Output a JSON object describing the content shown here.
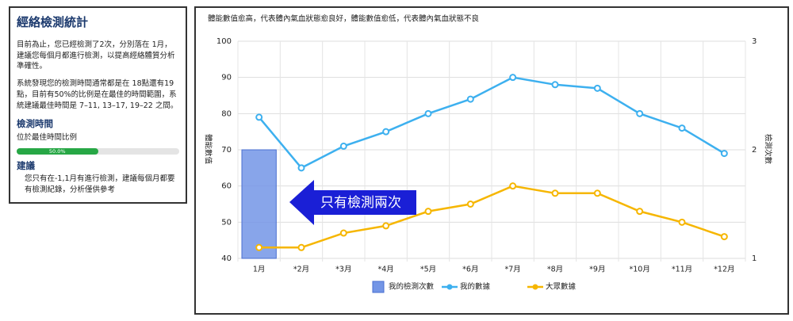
{
  "panel": {
    "title": "經絡檢測統計",
    "paragraphs": [
      "目前為止，您已經檢測了2次，分別落在 1月，建議您每個月都進行檢測，以提高經絡體質分析準確性。",
      "系統發現您的檢測時間通常都是在 18點還有19點，目前有50%的比例是在最佳的時間範圍，系統建議最佳時間是 7–11, 13–17, 19–22 之間。"
    ],
    "time_heading": "檢測時間",
    "time_sub": "位於最佳時間比例",
    "progress": 50,
    "progress_label": "50.0%",
    "advice_heading": "建議",
    "advice": "您只有在-1,1月有進行檢測，建議每個月都要有檢測紀錄，分析僅供參考"
  },
  "chart_data": {
    "type": "combo",
    "subtitle": "體能數值愈高，代表體內氣血狀態愈良好，體能數值愈低，代表體內氣血狀態不良",
    "y_label": "體能數值",
    "y2_label": "檢測次數",
    "annotation": "只有檢測兩次",
    "categories": [
      "1月",
      "*2月",
      "*3月",
      "*4月",
      "*5月",
      "*6月",
      "*7月",
      "*8月",
      "*9月",
      "*10月",
      "*11月",
      "*12月"
    ],
    "series": [
      {
        "name": "我的檢測次數",
        "kind": "bar",
        "axis": "y2",
        "color": "#7395e6",
        "values": [
          2,
          null,
          null,
          null,
          null,
          null,
          null,
          null,
          null,
          null,
          null,
          null
        ]
      },
      {
        "name": "我的數據",
        "kind": "line",
        "color": "#3db0ef",
        "values": [
          79,
          65,
          71,
          75,
          80,
          84,
          90,
          88,
          87,
          80,
          76,
          69
        ]
      },
      {
        "name": "大眾數據",
        "kind": "line",
        "color": "#f6b600",
        "values": [
          43,
          43,
          47,
          49,
          53,
          55,
          60,
          58,
          58,
          53,
          50,
          46
        ]
      }
    ],
    "ylim": [
      40,
      100
    ],
    "yticks": [
      40,
      50,
      60,
      70,
      80,
      90,
      100
    ],
    "y2lim": [
      1,
      3
    ],
    "y2ticks": [
      1,
      2,
      3
    ],
    "grid": true
  }
}
